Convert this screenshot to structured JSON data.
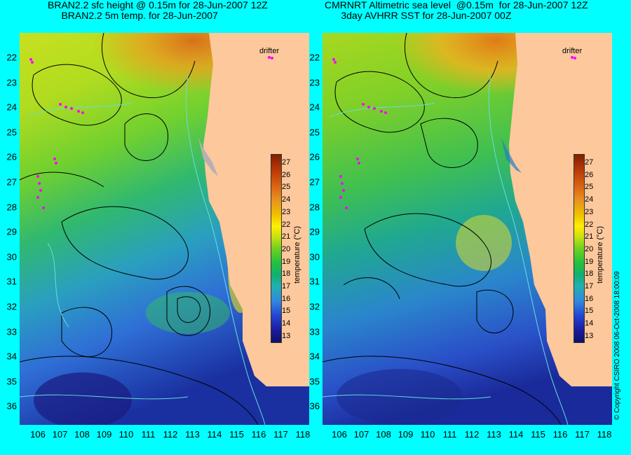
{
  "panels": [
    {
      "title": "BRAN2.2 sfc height @ 0.15m for 28-Jun-2007 12Z\n     BRAN2.2 5m temp. for 28-Jun-2007",
      "drifter_label": "drifter"
    },
    {
      "title": "CMRNRT Altimetric sea level  @0.15m  for 28-Jun-2007 12Z\n      3day AVHRR SST for 28-Jun-2007 00Z",
      "drifter_label": "drifter"
    }
  ],
  "y_ticks": [
    "22",
    "23",
    "24",
    "25",
    "26",
    "27",
    "28",
    "29",
    "30",
    "31",
    "32",
    "33",
    "34",
    "35",
    "36"
  ],
  "x_ticks": [
    "106",
    "107",
    "108",
    "109",
    "110",
    "111",
    "112",
    "113",
    "114",
    "115",
    "116",
    "117",
    "118"
  ],
  "colorbar": {
    "label": "temperature (°C)",
    "ticks": [
      "27",
      "26",
      "25",
      "24",
      "23",
      "22",
      "21",
      "20",
      "19",
      "18",
      "17",
      "16",
      "15",
      "14",
      "13"
    ]
  },
  "copyright": "© Copyright CSIRO 2008    06-Oct-2008 18:00:09",
  "colors": {
    "land": "#fdc89b",
    "frame": "#00ffff",
    "contour": "#000000",
    "isobath": "#66dddd",
    "drifter": "#ff00ff"
  }
}
